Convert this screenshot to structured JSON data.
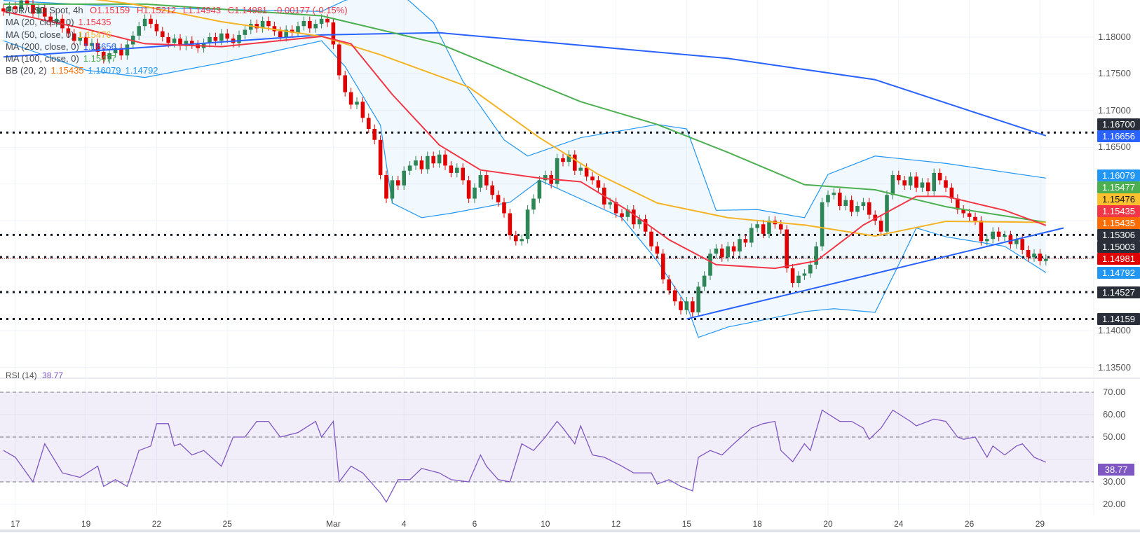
{
  "legend": {
    "symbol": "EUR/USD Spot, 4h",
    "o": "O1.15159",
    "h": "H1.15212",
    "l": "L1.14943",
    "c": "C1.14981",
    "change": "-0.00177 (-0.15%)",
    "indicators": [
      {
        "label": "MA (20, close, 0)",
        "value": "1.15435",
        "color": "#f23645"
      },
      {
        "label": "MA (50, close, 0)",
        "value": "1.15476",
        "color": "#f5b324"
      },
      {
        "label": "MA (200, close, 0)",
        "value": "1.16656",
        "color": "#2962ff"
      },
      {
        "label": "MA (100, close, 0)",
        "value": "1.15477",
        "color": "#4caf50"
      }
    ],
    "bb": {
      "label": "BB (20, 2)",
      "basis": "1.15435",
      "upper": "1.16079",
      "lower": "1.14792"
    }
  },
  "rsi_legend": {
    "label": "RSI (14)",
    "value": "38.77"
  },
  "price_labels": [
    {
      "text": "1.16700",
      "bg": "#2a2e39",
      "fg": "#ffffff"
    },
    {
      "text": "1.16656",
      "bg": "#2962ff",
      "fg": "#ffffff"
    },
    {
      "text": "1.16079",
      "bg": "#2196f3",
      "fg": "#ffffff"
    },
    {
      "text": "1.15477",
      "bg": "#4caf50",
      "fg": "#ffffff"
    },
    {
      "text": "1.15476",
      "bg": "#fbc02d",
      "fg": "#131722"
    },
    {
      "text": "1.15435",
      "bg": "#f23645",
      "fg": "#ffffff"
    },
    {
      "text": "1.15435",
      "bg": "#ff6d00",
      "fg": "#ffffff"
    },
    {
      "text": "1.15306",
      "bg": "#2a2e39",
      "fg": "#ffffff"
    },
    {
      "text": "1.15003",
      "bg": "#2a2e39",
      "fg": "#ffffff"
    },
    {
      "text": "1.14981",
      "bg": "#e00000",
      "fg": "#ffffff"
    },
    {
      "text": "1.14792",
      "bg": "#2196f3",
      "fg": "#ffffff"
    },
    {
      "text": "1.14527",
      "bg": "#2a2e39",
      "fg": "#ffffff"
    },
    {
      "text": "1.14159",
      "bg": "#2a2e39",
      "fg": "#ffffff"
    },
    {
      "text": "38.77",
      "bg": "#7e57c2",
      "fg": "#ffffff"
    }
  ],
  "chart_data": [
    {
      "type": "candlestick",
      "title": "EUR/USD Spot, 4h",
      "ylim": [
        1.1325,
        1.1855
      ],
      "yticks": [
        "1.18000",
        "1.17500",
        "1.17000",
        "1.16500",
        "1.14000",
        "1.13500"
      ],
      "x_tick_labels": [
        [
          "17",
          2
        ],
        [
          "19",
          14
        ],
        [
          "22",
          26
        ],
        [
          "25",
          38
        ],
        [
          "Mar",
          56
        ],
        [
          "4",
          68
        ],
        [
          "6",
          80
        ],
        [
          "10",
          92
        ],
        [
          "12",
          104
        ],
        [
          "15",
          116
        ],
        [
          "18",
          128
        ],
        [
          "20",
          140
        ],
        [
          "24",
          152
        ],
        [
          "26",
          164
        ],
        [
          "29",
          176
        ]
      ],
      "colors": {
        "up": "#2e8555",
        "down": "#e00000"
      },
      "close": [
        1.1835,
        1.1842,
        1.1838,
        1.185,
        1.1845,
        1.1832,
        1.184,
        1.1828,
        1.182,
        1.1825,
        1.1812,
        1.1805,
        1.1795,
        1.18,
        1.1788,
        1.1792,
        1.178,
        1.177,
        1.1778,
        1.1785,
        1.1775,
        1.179,
        1.1802,
        1.1815,
        1.1825,
        1.1818,
        1.1808,
        1.18,
        1.1792,
        1.1798,
        1.1788,
        1.1795,
        1.179,
        1.1785,
        1.1792,
        1.18,
        1.1795,
        1.1805,
        1.1798,
        1.1792,
        1.1803,
        1.181,
        1.1818,
        1.1812,
        1.1822,
        1.1815,
        1.1808,
        1.18,
        1.181,
        1.1806,
        1.1815,
        1.1822,
        1.1812,
        1.1818,
        1.1825,
        1.182,
        1.179,
        1.1748,
        1.1725,
        1.1708,
        1.1712,
        1.169,
        1.1675,
        1.166,
        1.1612,
        1.158,
        1.1605,
        1.1598,
        1.1618,
        1.1625,
        1.1632,
        1.162,
        1.1638,
        1.1628,
        1.164,
        1.1625,
        1.1615,
        1.1622,
        1.1605,
        1.158,
        1.1595,
        1.1612,
        1.1598,
        1.1585,
        1.1575,
        1.156,
        1.153,
        1.1522,
        1.1525,
        1.1565,
        1.158,
        1.1605,
        1.1612,
        1.16,
        1.1635,
        1.163,
        1.164,
        1.1618,
        1.1622,
        1.161,
        1.1605,
        1.1595,
        1.1572,
        1.1575,
        1.156,
        1.1555,
        1.1565,
        1.1545,
        1.1552,
        1.1535,
        1.1515,
        1.1505,
        1.147,
        1.1455,
        1.144,
        1.1428,
        1.144,
        1.1425,
        1.146,
        1.1475,
        1.1505,
        1.1512,
        1.15,
        1.1515,
        1.1508,
        1.1525,
        1.152,
        1.154,
        1.1545,
        1.1532,
        1.155,
        1.1545,
        1.1538,
        1.1485,
        1.1465,
        1.1475,
        1.1478,
        1.149,
        1.1515,
        1.1575,
        1.1585,
        1.1588,
        1.157,
        1.1578,
        1.1562,
        1.157,
        1.1575,
        1.1558,
        1.155,
        1.1535,
        1.1585,
        1.1612,
        1.1605,
        1.1598,
        1.161,
        1.1595,
        1.1602,
        1.159,
        1.1615,
        1.1605,
        1.1595,
        1.158,
        1.1565,
        1.156,
        1.1555,
        1.155,
        1.1522,
        1.1525,
        1.1535,
        1.1528,
        1.153,
        1.1518,
        1.1525,
        1.151,
        1.15,
        1.1505,
        1.1495,
        1.1498
      ],
      "lines": [
        {
          "name": "MA (200, close, 0)",
          "color": "#2962ff",
          "points": [
            [
              0,
              1.1773
            ],
            [
              24,
              1.1786
            ],
            [
              54,
              1.1803
            ],
            [
              74,
              1.1806
            ],
            [
              123,
              1.1771
            ],
            [
              148,
              1.1742
            ],
            [
              177,
              1.16656
            ]
          ]
        },
        {
          "name": "MA (100, close, 0)",
          "color": "#4caf50",
          "points": [
            [
              0,
              1.1845
            ],
            [
              24,
              1.1845
            ],
            [
              54,
              1.1829
            ],
            [
              74,
              1.1791
            ],
            [
              98,
              1.1712
            ],
            [
              111,
              1.1681
            ],
            [
              123,
              1.1643
            ],
            [
              136,
              1.1599
            ],
            [
              148,
              1.1592
            ],
            [
              160,
              1.1569
            ],
            [
              177,
              1.15477
            ]
          ]
        },
        {
          "name": "MA (50, close, 0)",
          "color": "#f5b324",
          "points": [
            [
              7,
              1.186
            ],
            [
              22,
              1.1845
            ],
            [
              37,
              1.1821
            ],
            [
              54,
              1.1801
            ],
            [
              64,
              1.1776
            ],
            [
              79,
              1.1732
            ],
            [
              91,
              1.1663
            ],
            [
              101,
              1.1613
            ],
            [
              111,
              1.1574
            ],
            [
              123,
              1.1554
            ],
            [
              136,
              1.1544
            ],
            [
              148,
              1.1529
            ],
            [
              160,
              1.1549
            ],
            [
              177,
              1.15476
            ]
          ]
        },
        {
          "name": "MA (20, close, 0)",
          "color": "#f23645",
          "points": [
            [
              0,
              1.1835
            ],
            [
              14,
              1.1811
            ],
            [
              24,
              1.1791
            ],
            [
              37,
              1.1787
            ],
            [
              54,
              1.1801
            ],
            [
              59,
              1.1791
            ],
            [
              66,
              1.1722
            ],
            [
              74,
              1.1653
            ],
            [
              81,
              1.1619
            ],
            [
              91,
              1.1608
            ],
            [
              98,
              1.1603
            ],
            [
              106,
              1.1564
            ],
            [
              113,
              1.1524
            ],
            [
              121,
              1.149
            ],
            [
              131,
              1.1485
            ],
            [
              138,
              1.1495
            ],
            [
              146,
              1.1544
            ],
            [
              155,
              1.1583
            ],
            [
              160,
              1.1583
            ],
            [
              170,
              1.1564
            ],
            [
              177,
              1.15435
            ]
          ]
        }
      ],
      "bollinger": {
        "color": "#2196f3",
        "upper": [
          [
            0,
            1.185
          ],
          [
            24,
            1.184
          ],
          [
            54,
            1.1835
          ],
          [
            58,
            1.185
          ],
          [
            66,
            1.187
          ],
          [
            73,
            1.182
          ],
          [
            78,
            1.174
          ],
          [
            85,
            1.166
          ],
          [
            89,
            1.1638
          ],
          [
            98,
            1.1663
          ],
          [
            111,
            1.1681
          ],
          [
            116,
            1.1675
          ],
          [
            121,
            1.1564
          ],
          [
            128,
            1.1565
          ],
          [
            136,
            1.1554
          ],
          [
            140,
            1.1613
          ],
          [
            148,
            1.1638
          ],
          [
            160,
            1.1628
          ],
          [
            177,
            1.16079
          ]
        ],
        "lower": [
          [
            0,
            1.1795
          ],
          [
            14,
            1.1755
          ],
          [
            24,
            1.1745
          ],
          [
            37,
            1.1765
          ],
          [
            54,
            1.1795
          ],
          [
            58,
            1.176
          ],
          [
            64,
            1.168
          ],
          [
            66,
            1.1574
          ],
          [
            71,
            1.1554
          ],
          [
            76,
            1.156
          ],
          [
            86,
            1.1575
          ],
          [
            91,
            1.1605
          ],
          [
            105,
            1.1554
          ],
          [
            111,
            1.1495
          ],
          [
            116,
            1.1435
          ],
          [
            118,
            1.1391
          ],
          [
            123,
            1.1405
          ],
          [
            136,
            1.1426
          ],
          [
            141,
            1.143
          ],
          [
            148,
            1.1425
          ],
          [
            152,
            1.149
          ],
          [
            155,
            1.154
          ],
          [
            160,
            1.1528
          ],
          [
            170,
            1.1515
          ],
          [
            177,
            1.14792
          ]
        ]
      },
      "trendline": {
        "color": "#2962ff",
        "points": [
          [
            116,
            1.1416
          ],
          [
            180,
            1.154
          ]
        ]
      },
      "horizontal_levels": [
        1.167,
        1.15306,
        1.15003,
        1.14527,
        1.14159
      ],
      "last_price": 1.14981
    },
    {
      "type": "line",
      "title": "RSI (14)",
      "ylim": [
        15,
        75
      ],
      "yticks": [
        "70.00",
        "60.00",
        "50.00",
        "30.00",
        "20.00"
      ],
      "band": [
        30,
        70
      ],
      "midline": 50,
      "color": "#7e57c2",
      "points": [
        [
          0,
          44
        ],
        [
          2,
          41
        ],
        [
          5,
          30
        ],
        [
          7,
          47
        ],
        [
          10,
          34
        ],
        [
          13,
          32
        ],
        [
          16,
          37
        ],
        [
          17,
          28
        ],
        [
          19,
          31
        ],
        [
          21,
          28
        ],
        [
          23,
          44
        ],
        [
          25,
          46
        ],
        [
          26,
          56
        ],
        [
          28,
          56
        ],
        [
          29,
          46
        ],
        [
          30,
          47
        ],
        [
          32,
          42
        ],
        [
          34,
          44
        ],
        [
          37,
          37
        ],
        [
          39,
          50
        ],
        [
          41,
          50
        ],
        [
          43,
          57
        ],
        [
          45,
          57
        ],
        [
          47,
          50
        ],
        [
          50,
          52
        ],
        [
          53,
          57
        ],
        [
          54,
          50
        ],
        [
          56,
          57
        ],
        [
          57,
          30
        ],
        [
          59,
          37
        ],
        [
          61,
          34
        ],
        [
          64,
          25
        ],
        [
          65,
          21
        ],
        [
          67,
          31
        ],
        [
          69,
          31
        ],
        [
          71,
          36
        ],
        [
          74,
          34
        ],
        [
          76,
          31
        ],
        [
          79,
          30
        ],
        [
          81,
          42
        ],
        [
          82,
          37
        ],
        [
          84,
          31
        ],
        [
          86,
          30
        ],
        [
          88,
          47
        ],
        [
          90,
          44
        ],
        [
          92,
          50
        ],
        [
          94,
          57
        ],
        [
          95,
          54
        ],
        [
          97,
          47
        ],
        [
          98,
          55
        ],
        [
          100,
          42
        ],
        [
          102,
          41
        ],
        [
          105,
          37
        ],
        [
          107,
          34
        ],
        [
          110,
          34
        ],
        [
          111,
          29
        ],
        [
          113,
          31
        ],
        [
          115,
          28
        ],
        [
          117,
          26
        ],
        [
          118,
          41
        ],
        [
          120,
          44
        ],
        [
          122,
          42
        ],
        [
          124,
          47
        ],
        [
          127,
          54
        ],
        [
          129,
          56
        ],
        [
          131,
          57
        ],
        [
          132,
          44
        ],
        [
          134,
          39
        ],
        [
          136,
          47
        ],
        [
          137,
          44
        ],
        [
          139,
          62
        ],
        [
          142,
          57
        ],
        [
          144,
          57
        ],
        [
          146,
          54
        ],
        [
          147,
          49
        ],
        [
          149,
          54
        ],
        [
          151,
          62
        ],
        [
          154,
          57
        ],
        [
          155,
          55
        ],
        [
          158,
          58
        ],
        [
          160,
          57
        ],
        [
          162,
          50
        ],
        [
          163,
          49
        ],
        [
          165,
          50
        ],
        [
          167,
          41
        ],
        [
          168,
          46
        ],
        [
          170,
          42
        ],
        [
          172,
          46
        ],
        [
          173,
          47
        ],
        [
          175,
          41
        ],
        [
          177,
          38.77
        ]
      ],
      "last_value": 38.77
    }
  ]
}
